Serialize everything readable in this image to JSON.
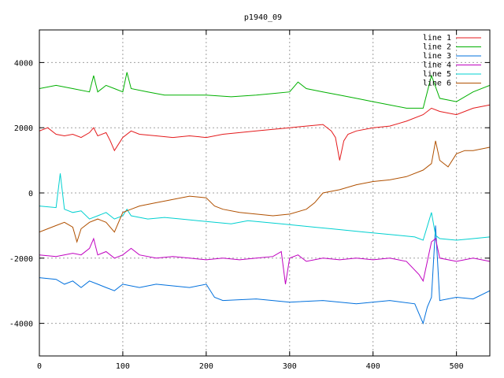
{
  "chart_data": {
    "type": "line",
    "title": "p1940_09",
    "xlabel": "",
    "ylabel": "",
    "xlim": [
      0,
      540
    ],
    "ylim": [
      -5000,
      5000
    ],
    "xticks": [
      0,
      100,
      200,
      300,
      400,
      500
    ],
    "yticks": [
      -4000,
      -2000,
      0,
      2000,
      4000
    ],
    "grid": true,
    "legend_position": "top-right",
    "series": [
      {
        "name": "line 1",
        "color": "#e41a1c",
        "points": [
          [
            0,
            1900
          ],
          [
            10,
            2000
          ],
          [
            20,
            1800
          ],
          [
            30,
            1750
          ],
          [
            40,
            1800
          ],
          [
            50,
            1700
          ],
          [
            60,
            1850
          ],
          [
            65,
            2000
          ],
          [
            70,
            1750
          ],
          [
            80,
            1850
          ],
          [
            85,
            1600
          ],
          [
            90,
            1300
          ],
          [
            100,
            1700
          ],
          [
            110,
            1900
          ],
          [
            120,
            1800
          ],
          [
            140,
            1750
          ],
          [
            160,
            1700
          ],
          [
            180,
            1750
          ],
          [
            200,
            1700
          ],
          [
            220,
            1800
          ],
          [
            240,
            1850
          ],
          [
            260,
            1900
          ],
          [
            280,
            1950
          ],
          [
            300,
            2000
          ],
          [
            320,
            2050
          ],
          [
            340,
            2100
          ],
          [
            350,
            1900
          ],
          [
            355,
            1700
          ],
          [
            360,
            1000
          ],
          [
            365,
            1600
          ],
          [
            370,
            1800
          ],
          [
            380,
            1900
          ],
          [
            400,
            2000
          ],
          [
            420,
            2050
          ],
          [
            440,
            2200
          ],
          [
            460,
            2400
          ],
          [
            470,
            2600
          ],
          [
            480,
            2500
          ],
          [
            500,
            2400
          ],
          [
            520,
            2600
          ],
          [
            540,
            2700
          ]
        ]
      },
      {
        "name": "line 2",
        "color": "#00b000",
        "points": [
          [
            0,
            3200
          ],
          [
            20,
            3300
          ],
          [
            40,
            3200
          ],
          [
            60,
            3100
          ],
          [
            65,
            3600
          ],
          [
            70,
            3100
          ],
          [
            80,
            3300
          ],
          [
            90,
            3200
          ],
          [
            100,
            3100
          ],
          [
            105,
            3700
          ],
          [
            110,
            3200
          ],
          [
            130,
            3100
          ],
          [
            150,
            3000
          ],
          [
            180,
            3000
          ],
          [
            200,
            3000
          ],
          [
            230,
            2950
          ],
          [
            260,
            3000
          ],
          [
            280,
            3050
          ],
          [
            300,
            3100
          ],
          [
            310,
            3400
          ],
          [
            320,
            3200
          ],
          [
            340,
            3100
          ],
          [
            360,
            3000
          ],
          [
            380,
            2900
          ],
          [
            400,
            2800
          ],
          [
            420,
            2700
          ],
          [
            440,
            2600
          ],
          [
            460,
            2600
          ],
          [
            470,
            3600
          ],
          [
            480,
            2900
          ],
          [
            500,
            2800
          ],
          [
            520,
            3100
          ],
          [
            540,
            3300
          ]
        ]
      },
      {
        "name": "line 3",
        "color": "#0070dd",
        "points": [
          [
            0,
            -2600
          ],
          [
            20,
            -2650
          ],
          [
            30,
            -2800
          ],
          [
            40,
            -2700
          ],
          [
            50,
            -2900
          ],
          [
            60,
            -2700
          ],
          [
            70,
            -2800
          ],
          [
            80,
            -2900
          ],
          [
            90,
            -3000
          ],
          [
            100,
            -2800
          ],
          [
            120,
            -2900
          ],
          [
            140,
            -2800
          ],
          [
            160,
            -2850
          ],
          [
            180,
            -2900
          ],
          [
            200,
            -2800
          ],
          [
            210,
            -3200
          ],
          [
            220,
            -3300
          ],
          [
            260,
            -3250
          ],
          [
            300,
            -3350
          ],
          [
            340,
            -3300
          ],
          [
            380,
            -3400
          ],
          [
            420,
            -3300
          ],
          [
            450,
            -3400
          ],
          [
            460,
            -4000
          ],
          [
            465,
            -3500
          ],
          [
            470,
            -3200
          ],
          [
            475,
            -1000
          ],
          [
            480,
            -3300
          ],
          [
            500,
            -3200
          ],
          [
            520,
            -3250
          ],
          [
            540,
            -3000
          ]
        ]
      },
      {
        "name": "line 4",
        "color": "#c000c0",
        "points": [
          [
            0,
            -1900
          ],
          [
            20,
            -1950
          ],
          [
            40,
            -1850
          ],
          [
            50,
            -1900
          ],
          [
            60,
            -1700
          ],
          [
            65,
            -1400
          ],
          [
            70,
            -1900
          ],
          [
            80,
            -1800
          ],
          [
            90,
            -2000
          ],
          [
            100,
            -1900
          ],
          [
            110,
            -1700
          ],
          [
            120,
            -1900
          ],
          [
            140,
            -2000
          ],
          [
            160,
            -1950
          ],
          [
            180,
            -2000
          ],
          [
            200,
            -2050
          ],
          [
            220,
            -2000
          ],
          [
            240,
            -2050
          ],
          [
            260,
            -2000
          ],
          [
            280,
            -1950
          ],
          [
            290,
            -1800
          ],
          [
            295,
            -2800
          ],
          [
            300,
            -2000
          ],
          [
            310,
            -1900
          ],
          [
            320,
            -2100
          ],
          [
            340,
            -2000
          ],
          [
            360,
            -2050
          ],
          [
            380,
            -2000
          ],
          [
            400,
            -2050
          ],
          [
            420,
            -2000
          ],
          [
            440,
            -2100
          ],
          [
            455,
            -2500
          ],
          [
            460,
            -2700
          ],
          [
            470,
            -1500
          ],
          [
            475,
            -1400
          ],
          [
            480,
            -2000
          ],
          [
            500,
            -2100
          ],
          [
            520,
            -2000
          ],
          [
            540,
            -2100
          ]
        ]
      },
      {
        "name": "line 5",
        "color": "#00d0d0",
        "points": [
          [
            0,
            -400
          ],
          [
            20,
            -450
          ],
          [
            25,
            600
          ],
          [
            30,
            -500
          ],
          [
            40,
            -600
          ],
          [
            50,
            -550
          ],
          [
            60,
            -800
          ],
          [
            70,
            -700
          ],
          [
            80,
            -600
          ],
          [
            90,
            -800
          ],
          [
            100,
            -700
          ],
          [
            105,
            -500
          ],
          [
            110,
            -700
          ],
          [
            130,
            -800
          ],
          [
            150,
            -750
          ],
          [
            170,
            -800
          ],
          [
            190,
            -850
          ],
          [
            210,
            -900
          ],
          [
            230,
            -950
          ],
          [
            250,
            -850
          ],
          [
            270,
            -900
          ],
          [
            290,
            -950
          ],
          [
            310,
            -1000
          ],
          [
            330,
            -1050
          ],
          [
            350,
            -1100
          ],
          [
            370,
            -1150
          ],
          [
            390,
            -1200
          ],
          [
            410,
            -1250
          ],
          [
            430,
            -1300
          ],
          [
            450,
            -1350
          ],
          [
            460,
            -1450
          ],
          [
            470,
            -600
          ],
          [
            475,
            -1300
          ],
          [
            480,
            -1400
          ],
          [
            500,
            -1450
          ],
          [
            520,
            -1400
          ],
          [
            540,
            -1350
          ]
        ]
      },
      {
        "name": "line 6",
        "color": "#b05000",
        "points": [
          [
            0,
            -1200
          ],
          [
            10,
            -1100
          ],
          [
            20,
            -1000
          ],
          [
            30,
            -900
          ],
          [
            40,
            -1050
          ],
          [
            45,
            -1500
          ],
          [
            50,
            -1100
          ],
          [
            60,
            -900
          ],
          [
            70,
            -800
          ],
          [
            80,
            -900
          ],
          [
            90,
            -1200
          ],
          [
            100,
            -600
          ],
          [
            110,
            -500
          ],
          [
            120,
            -400
          ],
          [
            140,
            -300
          ],
          [
            160,
            -200
          ],
          [
            180,
            -100
          ],
          [
            200,
            -150
          ],
          [
            210,
            -400
          ],
          [
            220,
            -500
          ],
          [
            240,
            -600
          ],
          [
            260,
            -650
          ],
          [
            280,
            -700
          ],
          [
            300,
            -650
          ],
          [
            320,
            -500
          ],
          [
            330,
            -300
          ],
          [
            340,
            0
          ],
          [
            360,
            100
          ],
          [
            380,
            250
          ],
          [
            400,
            350
          ],
          [
            420,
            400
          ],
          [
            440,
            500
          ],
          [
            460,
            700
          ],
          [
            470,
            900
          ],
          [
            475,
            1600
          ],
          [
            480,
            1000
          ],
          [
            490,
            800
          ],
          [
            500,
            1200
          ],
          [
            510,
            1300
          ],
          [
            520,
            1300
          ],
          [
            540,
            1400
          ]
        ]
      }
    ]
  }
}
